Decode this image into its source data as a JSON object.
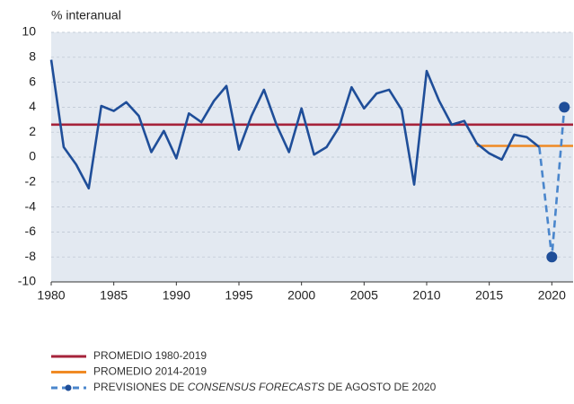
{
  "chart_data": {
    "type": "line",
    "y_label": "% interanual",
    "xlim": [
      1980,
      2021.7
    ],
    "xticks": [
      1980,
      1985,
      1990,
      1995,
      2000,
      2005,
      2010,
      2015,
      2020
    ],
    "ylim": [
      -10,
      10
    ],
    "yticks": [
      -10,
      -8,
      -6,
      -4,
      -2,
      0,
      2,
      4,
      6,
      8,
      10
    ],
    "grid": true,
    "series": [
      {
        "name": "PROMEDIO 1980-2019",
        "color": "#a6233a",
        "x": [
          1980,
          2021.7
        ],
        "values": [
          2.6,
          2.6
        ]
      },
      {
        "name": "PROMEDIO 2014-2019",
        "color": "#f08a24",
        "x": [
          2014,
          2021.7
        ],
        "values": [
          0.9,
          0.9
        ]
      },
      {
        "color": "#1f4e99",
        "x": [
          1980,
          1981,
          1982,
          1983,
          1984,
          1985,
          1986,
          1987,
          1988,
          1989,
          1990,
          1991,
          1992,
          1993,
          1994,
          1995,
          1996,
          1997,
          1998,
          1999,
          2000,
          2001,
          2002,
          2003,
          2004,
          2005,
          2006,
          2007,
          2008,
          2009,
          2010,
          2011,
          2012,
          2013,
          2014,
          2015,
          2016,
          2017,
          2018,
          2019
        ],
        "values": [
          7.8,
          0.8,
          -0.6,
          -2.5,
          4.1,
          3.7,
          4.4,
          3.3,
          0.4,
          2.1,
          -0.1,
          3.5,
          2.8,
          4.5,
          5.7,
          0.6,
          3.3,
          5.4,
          2.6,
          0.4,
          3.9,
          0.2,
          0.8,
          2.4,
          5.6,
          3.9,
          5.1,
          5.4,
          3.8,
          -2.2,
          6.9,
          4.5,
          2.6,
          2.9,
          1.1,
          0.3,
          -0.2,
          1.8,
          1.6,
          0.8
        ]
      },
      {
        "name_parts": [
          {
            "text": "PREVISIONES DE "
          },
          {
            "text": "CONSENSUS FORECASTS",
            "italic": true
          },
          {
            "text": " DE AGOSTO DE 2020"
          }
        ],
        "color": "#4a86cc",
        "marker_color": "#1f4e99",
        "dashed": true,
        "x": [
          2019,
          2020,
          2021
        ],
        "values": [
          0.8,
          -8,
          4
        ]
      }
    ]
  }
}
